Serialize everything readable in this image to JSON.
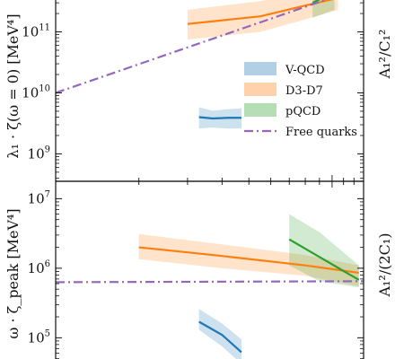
{
  "chart_data": [
    {
      "type": "line",
      "panel": "top",
      "ylabel": "λ₁ · ζ(ω = 0) [MeV⁴]",
      "right_label": "A₁²/C₁²",
      "yscale": "log",
      "xscale": "log",
      "y_ticks": [
        {
          "base": "10",
          "exp": "9",
          "value": 1000000000.0
        },
        {
          "base": "10",
          "exp": "10",
          "value": 10000000000.0
        },
        {
          "base": "10",
          "exp": "11",
          "value": 100000000000.0
        }
      ],
      "series": [
        {
          "name": "V-QCD",
          "color": "#1f77b4",
          "points": [
            [
              3.3,
              4000000000.0
            ],
            [
              3.7,
              3800000000.0
            ],
            [
              4.2,
              3900000000.0
            ],
            [
              4.7,
              3900000000.0
            ]
          ],
          "band_upper": [
            5800000000.0,
            5100000000.0,
            5400000000.0,
            5600000000.0
          ],
          "band_lower": [
            2600000000.0,
            2700000000.0,
            2600000000.0,
            2600000000.0
          ]
        },
        {
          "name": "D3-D7",
          "color": "#ff7f0e",
          "points": [
            [
              3.0,
              135000000000.0
            ],
            [
              5.5,
              180000000000.0
            ],
            [
              8.0,
              270000000000.0
            ],
            [
              10.5,
              360000000000.0
            ]
          ],
          "band_upper": [
            230000000000.0,
            320000000000.0,
            460000000000.0,
            550000000000.0
          ],
          "band_lower": [
            75000000000.0,
            100000000000.0,
            160000000000.0,
            230000000000.0
          ]
        },
        {
          "name": "pQCD",
          "color": "#2ca02c",
          "points": [
            [
              8.5,
              300000000000.0
            ],
            [
              10.2,
              450000000000.0
            ]
          ],
          "band_upper": [
            460000000000.0,
            550000000000.0
          ],
          "band_lower": [
            170000000000.0,
            230000000000.0
          ]
        },
        {
          "name": "Free quarks",
          "color": "#9467bd",
          "style": "dash-dot",
          "points": [
            [
              1.0,
              10000000000.0
            ],
            [
              13.0,
              550000000000.0
            ]
          ]
        }
      ]
    },
    {
      "type": "line",
      "panel": "bottom",
      "ylabel": "ω · ζ_peak [MeV⁴]",
      "right_label": "A₁²/(2C₁)",
      "yscale": "log",
      "xscale": "log",
      "y_ticks": [
        {
          "base": "10",
          "exp": "5",
          "value": 100000.0
        },
        {
          "base": "10",
          "exp": "6",
          "value": 1000000.0
        },
        {
          "base": "10",
          "exp": "7",
          "value": 10000000.0
        }
      ],
      "series": [
        {
          "name": "V-QCD",
          "color": "#1f77b4",
          "points": [
            [
              3.3,
              170000.0
            ],
            [
              4.0,
              110000.0
            ],
            [
              4.7,
              62000.0
            ]
          ],
          "band_upper": [
            260000.0,
            160000.0,
            95000.0
          ],
          "band_lower": [
            130000.0,
            75000.0,
            42000.0
          ]
        },
        {
          "name": "D3-D7",
          "color": "#ff7f0e",
          "points": [
            [
              2.0,
              2000000.0
            ],
            [
              4.0,
              1500000.0
            ],
            [
              8.0,
              1100000.0
            ],
            [
              12.5,
              860000.0
            ]
          ],
          "band_upper": [
            3100000.0,
            2200000.0,
            1550000.0,
            1100000.0
          ],
          "band_lower": [
            1350000.0,
            1000000.0,
            780000.0,
            550000.0
          ]
        },
        {
          "name": "pQCD",
          "color": "#2ca02c",
          "points": [
            [
              7.0,
              2600000.0
            ],
            [
              9.0,
              1450000.0
            ],
            [
              12.5,
              680000.0
            ]
          ],
          "band_upper": [
            6000000.0,
            3300000.0,
            1100000.0
          ],
          "band_lower": [
            1100000.0,
            650000.0,
            530000.0
          ]
        },
        {
          "name": "Free quarks",
          "color": "#9467bd",
          "style": "dash-dot",
          "points": [
            [
              1.0,
              630000.0
            ],
            [
              13.0,
              650000.0
            ]
          ]
        }
      ]
    }
  ],
  "legend": [
    {
      "label": "V-QCD",
      "color": "#1f77b4",
      "kind": "band"
    },
    {
      "label": "D3-D7",
      "color": "#ff7f0e",
      "kind": "band"
    },
    {
      "label": "pQCD",
      "color": "#2ca02c",
      "kind": "band"
    },
    {
      "label": "Free quarks",
      "color": "#9467bd",
      "kind": "dash-dot"
    }
  ]
}
